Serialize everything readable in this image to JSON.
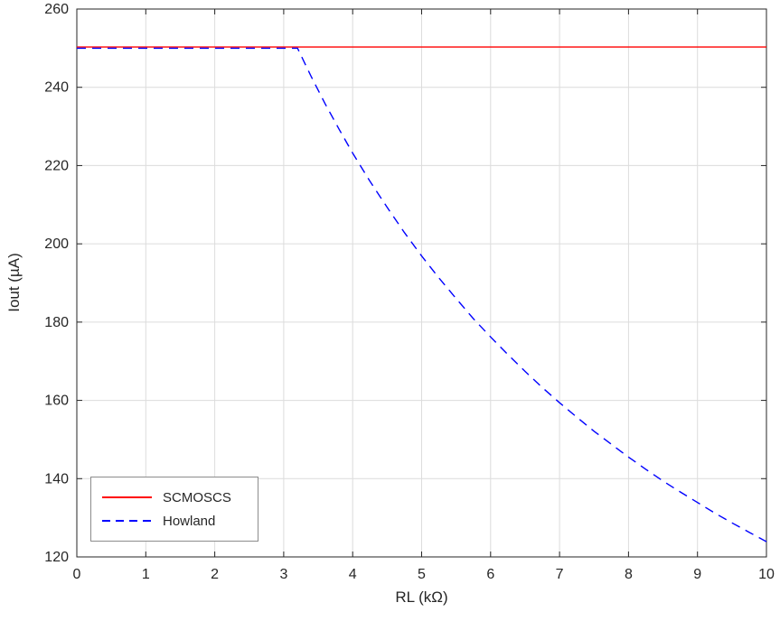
{
  "figure": {
    "background": "#ffffff",
    "axis_color": "#262626",
    "grid_color": "#dcdcdc",
    "tick_label_color": "#262626"
  },
  "chart_data": {
    "type": "line",
    "title": "",
    "xlabel": "RL (kΩ)",
    "ylabel": "Iout (µA)",
    "xlim": [
      0,
      10
    ],
    "ylim": [
      120,
      260
    ],
    "x_ticks": [
      0,
      1,
      2,
      3,
      4,
      5,
      6,
      7,
      8,
      9,
      10
    ],
    "y_ticks": [
      120,
      140,
      160,
      180,
      200,
      220,
      240,
      260
    ],
    "grid": true,
    "legend_position": "bottom-left",
    "series": [
      {
        "name": "SCMOSCS",
        "color": "#ff0000",
        "style": "solid",
        "x": [
          0,
          10
        ],
        "values": [
          250.3,
          250.3
        ]
      },
      {
        "name": "Howland",
        "color": "#0000ff",
        "style": "dashed",
        "x": [
          0,
          0.5,
          1,
          1.5,
          2,
          2.5,
          3,
          3.2,
          3.4,
          3.6,
          3.8,
          4,
          4.25,
          4.5,
          4.75,
          5,
          5.25,
          5.5,
          5.75,
          6,
          6.25,
          6.5,
          6.75,
          7,
          7.25,
          7.5,
          7.75,
          8,
          8.25,
          8.5,
          8.75,
          9,
          9.25,
          9.5,
          9.75,
          10
        ],
        "values": [
          250,
          250,
          250,
          250,
          250,
          250,
          250,
          250,
          242.7,
          235.8,
          229.4,
          223.2,
          216.0,
          209.3,
          202.9,
          196.9,
          191.3,
          186.0,
          180.9,
          176.2,
          171.7,
          167.4,
          163.3,
          159.4,
          155.7,
          152.1,
          148.8,
          145.5,
          142.4,
          139.4,
          136.6,
          133.9,
          131.2,
          128.7,
          126.3,
          123.9
        ]
      }
    ]
  },
  "legend": {
    "items": [
      {
        "label": "SCMOSCS"
      },
      {
        "label": "Howland"
      }
    ]
  }
}
